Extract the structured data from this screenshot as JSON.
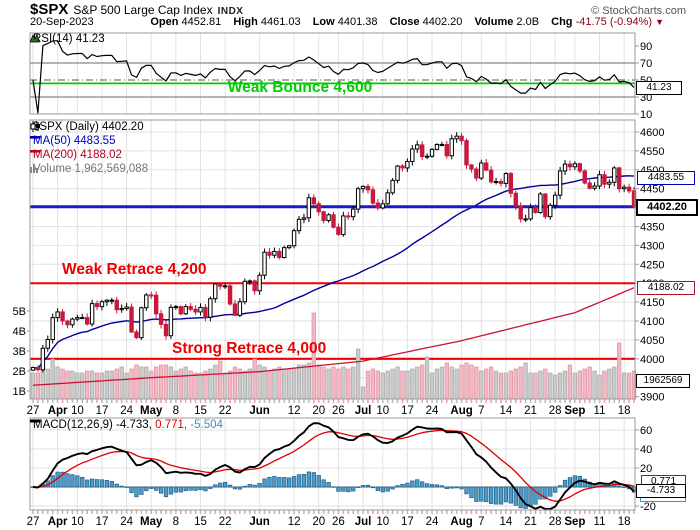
{
  "header": {
    "symbol": "$SPX",
    "name": "S&P 500 Large Cap Index",
    "exchange": "INDX",
    "copyright": "© StockCharts.com",
    "date": "20-Sep-2023",
    "open_label": "Open",
    "open_value": "4452.81",
    "high_label": "High",
    "high_value": "4461.03",
    "low_label": "Low",
    "low_value": "4401.38",
    "close_label": "Close",
    "close_value": "4402.20",
    "volume_label": "Volume",
    "volume_value": "2.0B",
    "chg_label": "Chg",
    "chg_value": "-41.75 (-0.94%)",
    "chg_arrow": "▼"
  },
  "rsi_pane": {
    "legend": "RSI(14) 41.23",
    "last_value_box": "41.23"
  },
  "main_pane": {
    "legend_symbol": "$SPX (Daily) 4402.20",
    "legend_ma50": "MA(50) 4483.55",
    "legend_ma200": "MA(200) 4188.02",
    "legend_volume": "Volume 1,962,569,088",
    "ma50_box": "4483.55",
    "price_box": "4402.20",
    "ma200_box": "4188.02",
    "volume_box": "1962569"
  },
  "macd_pane": {
    "legend_prefix": "MACD(12,26,9) ",
    "macd_value": "-4.733,",
    "signal_value": " 0.771,",
    "hist_value": " -5.504",
    "signal_box": "0.771",
    "macd_box": "-4.733",
    "hist_box": "-5.504"
  },
  "chart_data": {
    "type": "candlestick+volume+rsi+macd",
    "title": "$SPX S&P 500 Large Cap Index (Daily)",
    "date_range": "27-Mar-2023 to 20-Sep-2023",
    "price_axis_ticks": [
      4600,
      4550,
      4500,
      4450,
      4400,
      4350,
      4300,
      4250,
      4200,
      4150,
      4100,
      4050,
      4000,
      3950,
      3900
    ],
    "volume_axis_ticks": [
      "5B",
      "4B",
      "3B",
      "2B",
      "1B"
    ],
    "rsi_axis_ticks": [
      90,
      70,
      50,
      30,
      10
    ],
    "macd_axis_ticks": [
      60,
      40,
      20,
      0,
      -20
    ],
    "x_ticks": [
      [
        "27",
        0
      ],
      [
        "Apr",
        5
      ],
      [
        "10",
        9
      ],
      [
        "17",
        14
      ],
      [
        "24",
        19
      ],
      [
        "May",
        24
      ],
      [
        "8",
        29
      ],
      [
        "15",
        34
      ],
      [
        "22",
        39
      ],
      [
        "Jun",
        46
      ],
      [
        "12",
        53
      ],
      [
        "20",
        58
      ],
      [
        "26",
        62
      ],
      [
        "Jul",
        67
      ],
      [
        "10",
        71
      ],
      [
        "17",
        76
      ],
      [
        "24",
        81
      ],
      [
        "Aug",
        87
      ],
      [
        "7",
        91
      ],
      [
        "14",
        96
      ],
      [
        "21",
        101
      ],
      [
        "28",
        106
      ],
      [
        "Sep",
        110
      ],
      [
        "11",
        115
      ],
      [
        "18",
        120
      ]
    ],
    "annotations": {
      "weak_bounce": {
        "text": "Weak Bounce 4,600",
        "pane": "rsi",
        "line_value": 46,
        "color": "#00CC00"
      },
      "weak_retrace": {
        "text": "Weak Retrace 4,200",
        "pane": "main",
        "line_value": 4200,
        "color": "#EE0000"
      },
      "strong_retrace": {
        "text": "Strong Retrace 4,000",
        "pane": "main",
        "line_value": 4000,
        "color": "#EE0000"
      },
      "last_price_line": {
        "value": 4402.2,
        "color": "#1A1ACC"
      }
    },
    "indicators": {
      "ma50_last": 4483.55,
      "ma200_last": 4188.02,
      "rsi_last": 41.23,
      "macd_last": -4.733,
      "signal_last": 0.771,
      "hist_last": -5.504
    },
    "open_first": 3970,
    "closes": [
      3977,
      3971,
      4028,
      4051,
      4109,
      4124,
      4100,
      4090,
      4105,
      4109,
      4109,
      4092,
      4146,
      4138,
      4151,
      4155,
      4155,
      4130,
      4133,
      4137,
      4071,
      4056,
      4135,
      4169,
      4168,
      4119,
      4091,
      4061,
      4136,
      4138,
      4119,
      4138,
      4131,
      4124,
      4136,
      4110,
      4159,
      4198,
      4192,
      4193,
      4145,
      4115,
      4151,
      4205,
      4206,
      4180,
      4221,
      4282,
      4274,
      4284,
      4268,
      4294,
      4299,
      4339,
      4369,
      4373,
      4426,
      4410,
      4389,
      4366,
      4381,
      4348,
      4329,
      4378,
      4376,
      4396,
      4450,
      4456,
      4447,
      4412,
      4399,
      4410,
      4439,
      4472,
      4510,
      4505,
      4522,
      4555,
      4566,
      4535,
      4536,
      4554,
      4567,
      4567,
      4537,
      4582,
      4589,
      4577,
      4513,
      4502,
      4478,
      4518,
      4499,
      4468,
      4469,
      4464,
      4490,
      4438,
      4404,
      4370,
      4370,
      4400,
      4387,
      4436,
      4376,
      4406,
      4433,
      4497,
      4515,
      4508,
      4516,
      4497,
      4465,
      4451,
      4457,
      4487,
      4462,
      4467,
      4505,
      4450,
      4454,
      4444,
      4402.2
    ],
    "volumes_billions": [
      1.9,
      1.9,
      2.2,
      2.1,
      2.6,
      2.2,
      2.1,
      2.0,
      2.0,
      1.9,
      1.9,
      2.0,
      2.0,
      1.9,
      1.9,
      2.0,
      2.0,
      2.1,
      2.2,
      1.9,
      2.1,
      2.3,
      2.2,
      2.2,
      2.0,
      2.2,
      2.3,
      2.3,
      2.2,
      2.0,
      2.1,
      2.2,
      2.0,
      1.9,
      1.9,
      2.0,
      2.1,
      2.3,
      2.5,
      1.9,
      2.0,
      2.2,
      2.1,
      2.0,
      2.1,
      2.6,
      2.3,
      2.2,
      2.0,
      2.1,
      2.2,
      2.1,
      2.1,
      2.1,
      2.3,
      2.3,
      2.4,
      4.9,
      2.3,
      2.2,
      2.1,
      2.2,
      2.1,
      2.2,
      2.1,
      2.2,
      3.1,
      1.2,
      2.0,
      2.1,
      2.0,
      1.9,
      2.0,
      2.1,
      2.2,
      2.0,
      2.0,
      2.1,
      2.2,
      2.3,
      2.7,
      1.9,
      2.1,
      2.2,
      2.4,
      2.2,
      2.1,
      2.3,
      2.4,
      2.3,
      2.2,
      2.0,
      2.1,
      2.2,
      2.0,
      1.9,
      1.9,
      2.0,
      2.1,
      2.2,
      2.4,
      1.9,
      1.9,
      2.0,
      2.1,
      1.9,
      1.8,
      1.9,
      2.0,
      2.3,
      1.9,
      2.0,
      2.1,
      2.2,
      2.0,
      1.8,
      2.0,
      2.1,
      2.2,
      3.4,
      1.9,
      1.9,
      2.0
    ],
    "ma200_anchors": {
      "i": [
        0,
        24,
        46,
        67,
        87,
        110,
        122
      ],
      "v": [
        3930,
        3950,
        3966,
        3994,
        4048,
        4122,
        4188
      ]
    }
  }
}
